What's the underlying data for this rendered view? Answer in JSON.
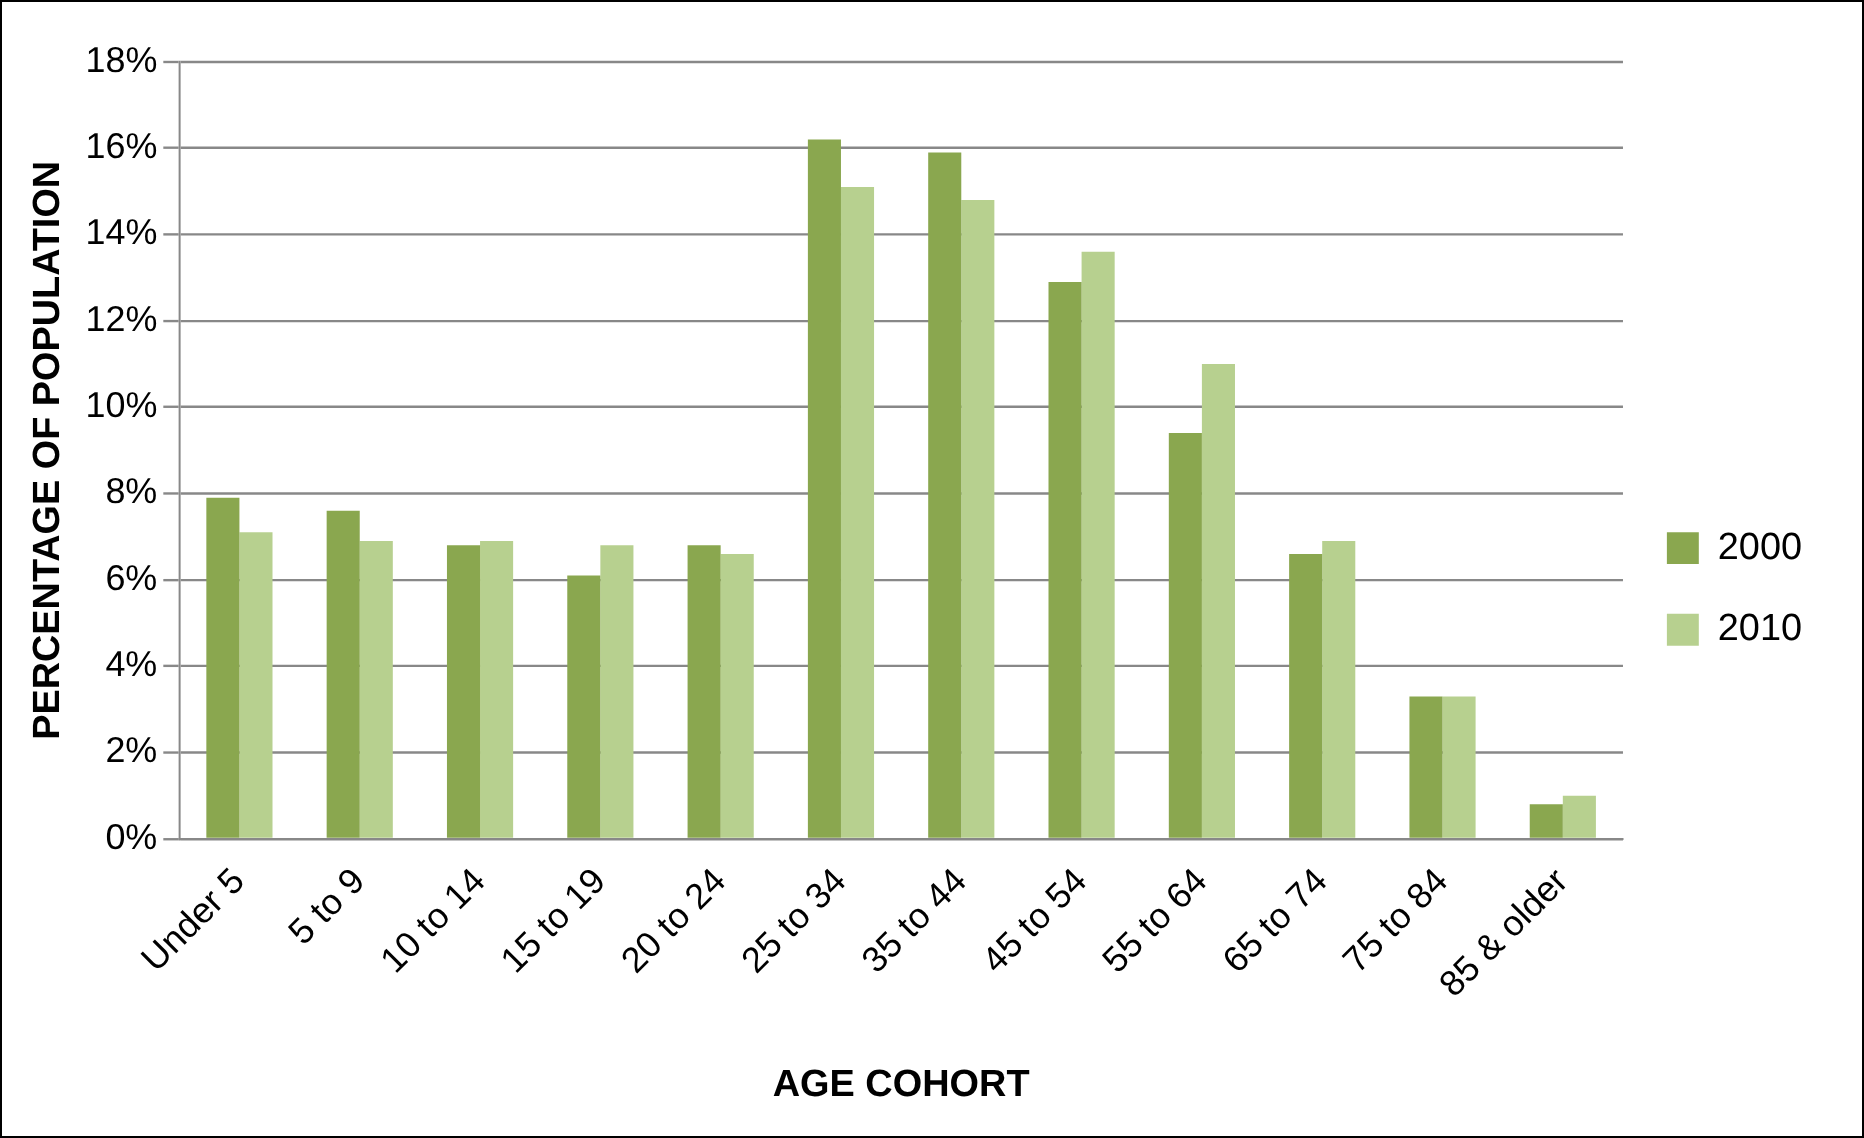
{
  "chart_data": {
    "type": "bar",
    "xlabel": "AGE COHORT",
    "ylabel": "PERCENTAGE OF POPULATION",
    "categories": [
      "Under 5",
      "5 to 9",
      "10 to 14",
      "15 to 19",
      "20 to 24",
      "25 to 34",
      "35 to 44",
      "45 to 54",
      "55 to 64",
      "65 to 74",
      "75 to 84",
      "85 & older"
    ],
    "series": [
      {
        "name": "2000",
        "color": "#8aa74f",
        "values": [
          7.9,
          7.6,
          6.8,
          6.1,
          6.8,
          16.2,
          15.9,
          12.9,
          9.4,
          6.6,
          3.3,
          0.8
        ]
      },
      {
        "name": "2010",
        "color": "#b7d08f",
        "values": [
          7.1,
          6.9,
          6.9,
          6.8,
          6.6,
          15.1,
          14.8,
          13.6,
          11.0,
          6.9,
          3.3,
          1.0
        ]
      }
    ],
    "ylim": [
      0,
      18
    ],
    "yticks": [
      {
        "value": 0,
        "label": "0%"
      },
      {
        "value": 2,
        "label": "2%"
      },
      {
        "value": 4,
        "label": "4%"
      },
      {
        "value": 6,
        "label": "6%"
      },
      {
        "value": 8,
        "label": "8%"
      },
      {
        "value": 10,
        "label": "10%"
      },
      {
        "value": 12,
        "label": "12%"
      },
      {
        "value": 14,
        "label": "14%"
      },
      {
        "value": 16,
        "label": "16%"
      },
      {
        "value": 18,
        "label": "18%"
      }
    ],
    "grid": "y",
    "legend": "right"
  }
}
